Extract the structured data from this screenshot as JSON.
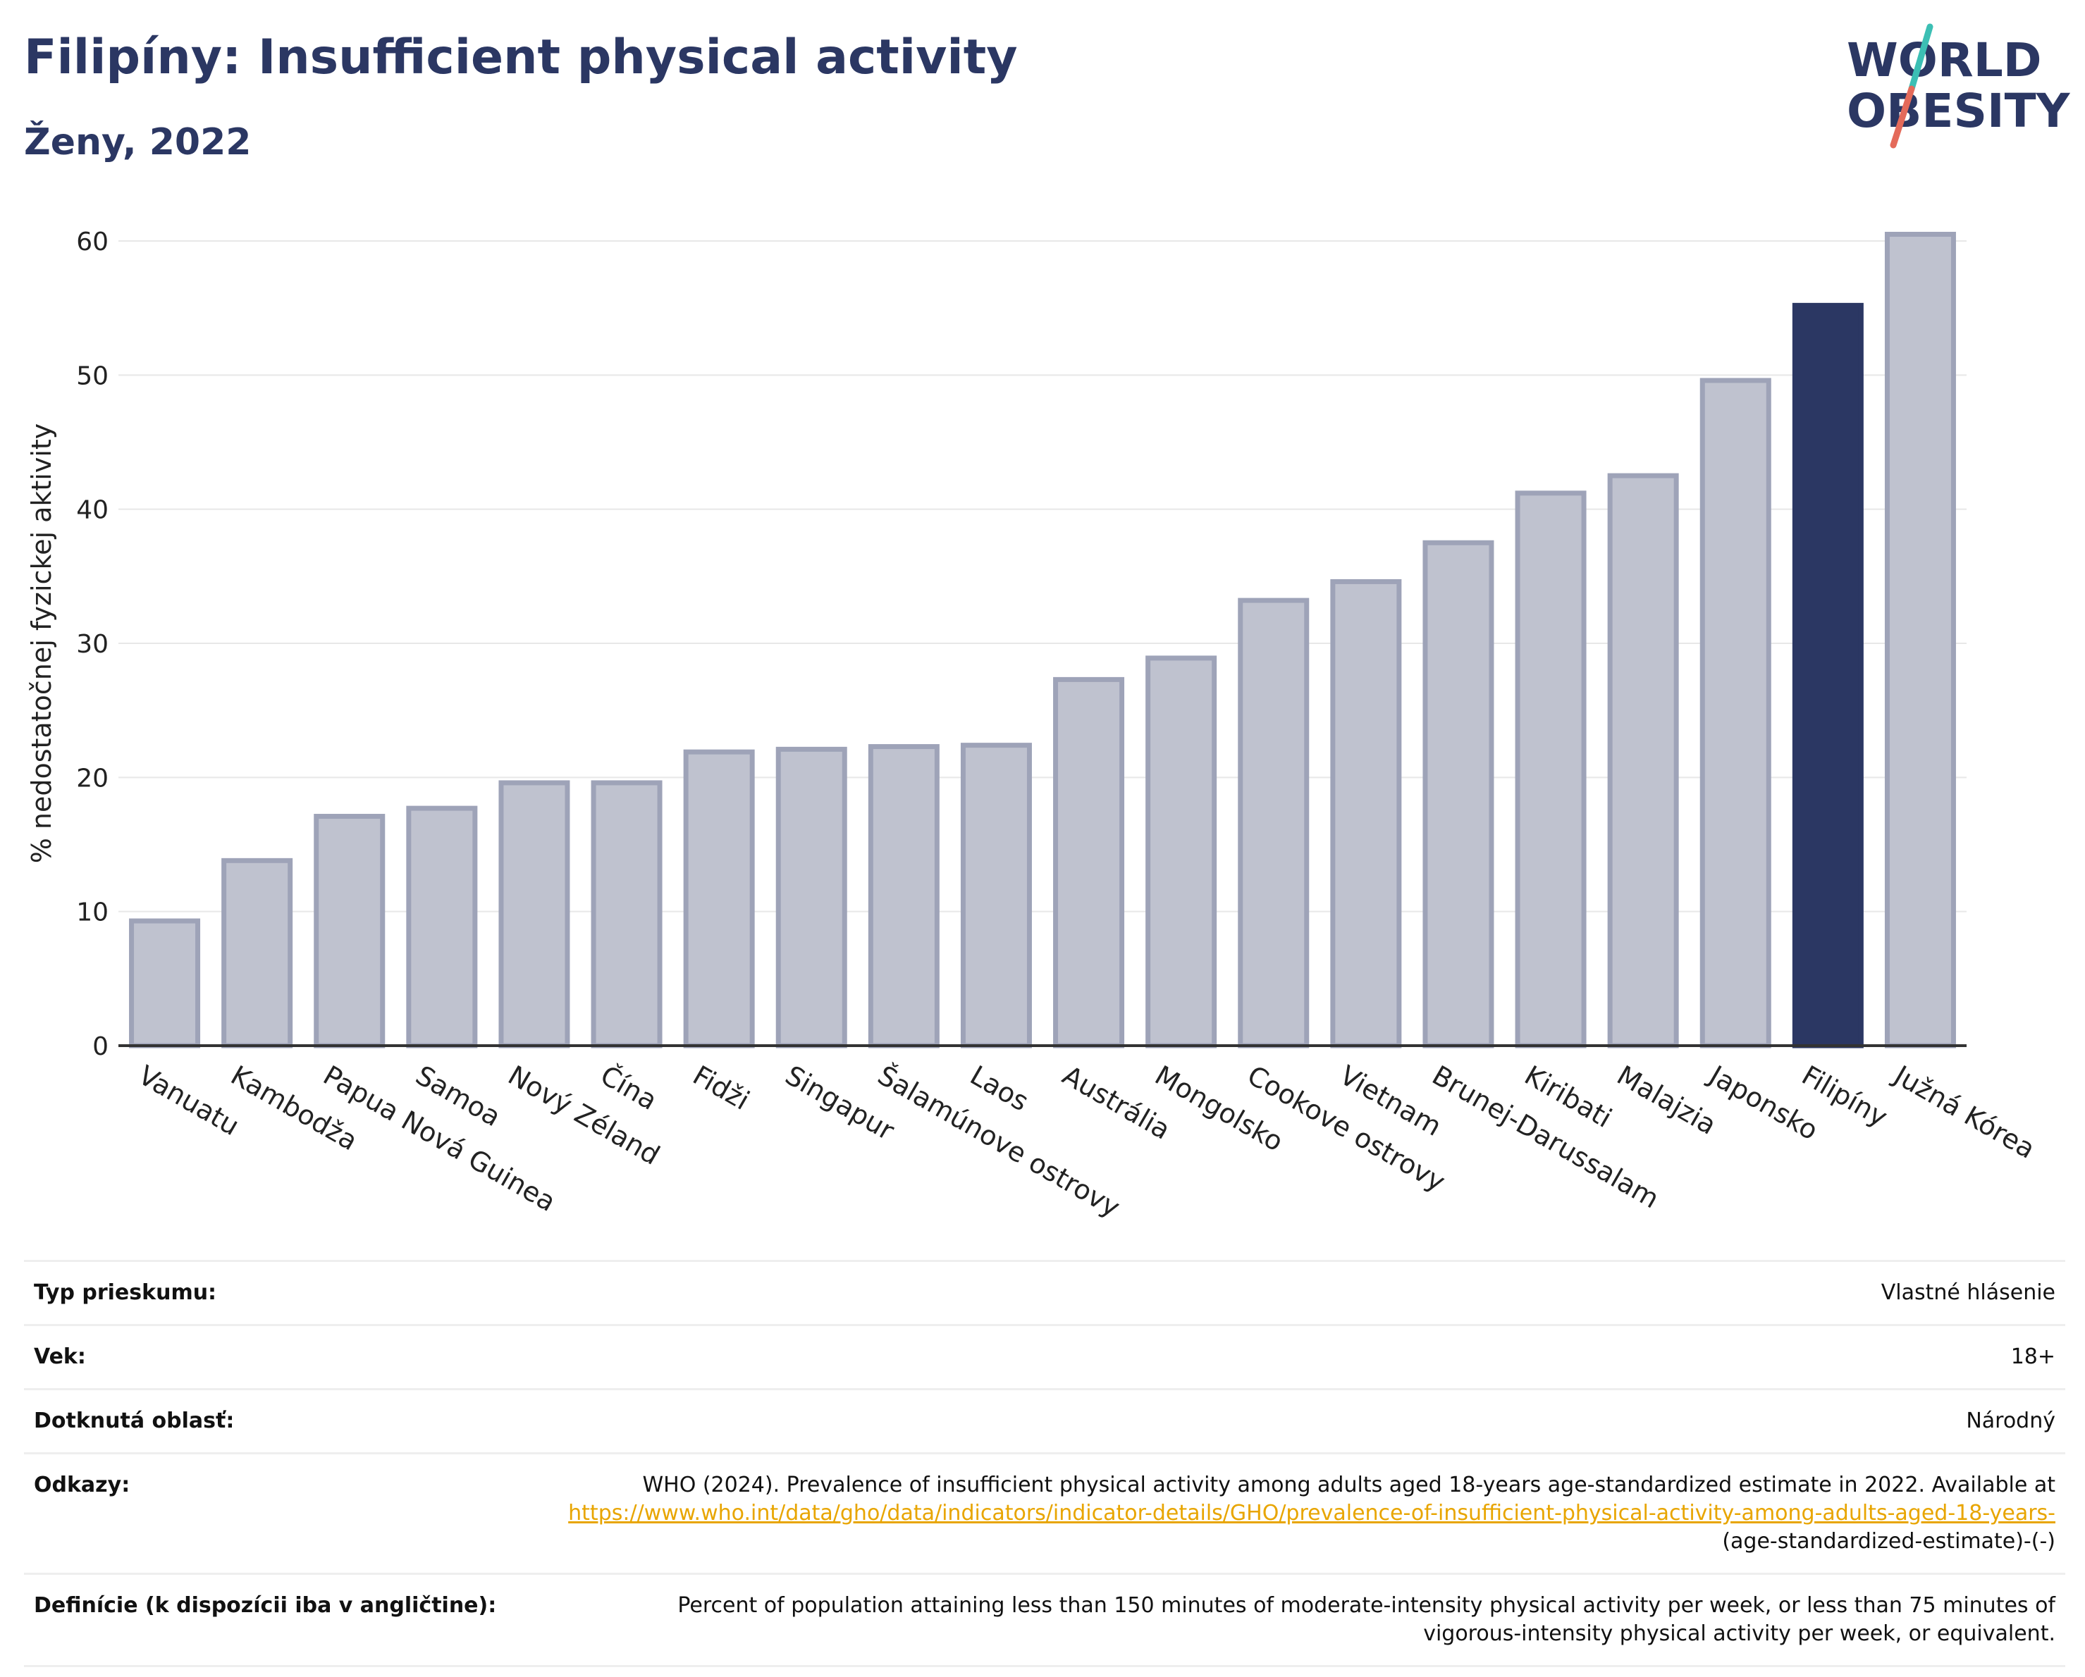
{
  "header": {
    "title": "Filipíny: Insufficient physical activity",
    "subtitle": "Ženy, 2022",
    "logo": {
      "line1": "WORLD",
      "line2": "OBESITY"
    }
  },
  "colors": {
    "title": "#2b3763",
    "bar_default": "#bfc2cf",
    "bar_default_stroke": "#9ea3b8",
    "bar_highlight": "#2b3763",
    "grid": "#e8e8e8",
    "axis": "#333333",
    "logo_teal": "#3cbfb4",
    "logo_coral": "#e46a5a",
    "link": "#e8a500"
  },
  "chart_data": {
    "type": "bar",
    "ylabel": "% nedostatočnej fyzickej aktivity",
    "xlabel": "",
    "ylim": [
      0,
      62
    ],
    "yticks": [
      0,
      10,
      20,
      30,
      40,
      50,
      60
    ],
    "grid": true,
    "highlight": "Filipíny",
    "categories": [
      "Vanuatu",
      "Kambodža",
      "Papua Nová Guinea",
      "Samoa",
      "Nový Zéland",
      "Čína",
      "Fidži",
      "Singapur",
      "Šalamúnove ostrovy",
      "Laos",
      "Austrália",
      "Mongolsko",
      "Cookove ostrovy",
      "Vietnam",
      "Brunej-Darussalam",
      "Kiribati",
      "Malajzia",
      "Japonsko",
      "Filipíny",
      "Južná Kórea"
    ],
    "values": [
      9.3,
      13.8,
      17.1,
      17.7,
      19.6,
      19.6,
      21.9,
      22.1,
      22.3,
      22.4,
      27.3,
      28.9,
      33.2,
      34.6,
      37.5,
      41.2,
      42.5,
      49.6,
      55.2,
      60.5
    ]
  },
  "info": {
    "rows": [
      {
        "key": "Typ prieskumu:",
        "value": "Vlastné hlásenie"
      },
      {
        "key": "Vek:",
        "value": "18+"
      },
      {
        "key": "Dotknutá oblasť:",
        "value": "Národný"
      }
    ],
    "references": {
      "key": "Odkazy:",
      "text": "WHO (2024). Prevalence of insufficient physical activity among adults aged 18-years age-standardized estimate in 2022. Available at",
      "link": "https://www.who.int/data/gho/data/indicators/indicator-details/GHO/prevalence-of-insufficient-physical-activity-among-adults-aged-18-years-",
      "suffix": "(age-standardized-estimate)-(-)"
    },
    "definitions": {
      "key": "Definície (k dispozícii iba v angličtine):",
      "value": "Percent of population attaining less than 150 minutes of moderate-intensity physical activity per week, or less than 75 minutes of vigorous-intensity physical activity per week, or equivalent."
    }
  }
}
